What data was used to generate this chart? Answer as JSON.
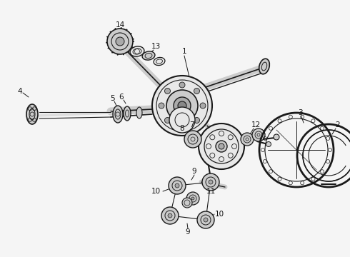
{
  "bg_color": "#f5f5f5",
  "line_color": "#1a1a1a",
  "fill_light": "#e8e8e8",
  "fill_mid": "#cccccc",
  "fill_dark": "#aaaaaa"
}
